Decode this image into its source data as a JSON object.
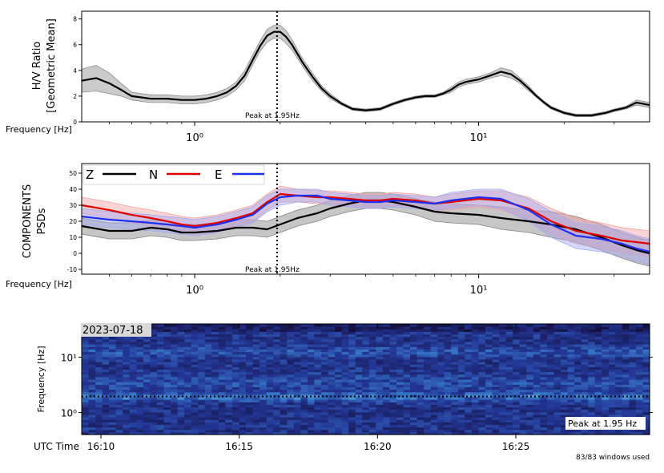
{
  "chart_data": [
    {
      "type": "line",
      "panel": "hv",
      "ylabel_line1": "H/V Ratio",
      "ylabel_line2": "[Geometric Mean]",
      "xlabel": "Frequency [Hz]",
      "x_scale": "log",
      "xlim": [
        0.4,
        40
      ],
      "ylim": [
        0,
        8.6
      ],
      "yticks": [
        0,
        2,
        4,
        6,
        8
      ],
      "xticks": [
        {
          "value": 1,
          "label": "10⁰"
        },
        {
          "value": 10,
          "label": "10¹"
        }
      ],
      "peak_freq": 1.95,
      "peak_label": "Peak at 1.95Hz",
      "series": [
        {
          "color": "#000000",
          "band_color": "#8c8c8c",
          "x": [
            0.4,
            0.45,
            0.5,
            0.55,
            0.6,
            0.7,
            0.8,
            0.9,
            1.0,
            1.1,
            1.2,
            1.3,
            1.4,
            1.5,
            1.6,
            1.7,
            1.8,
            1.9,
            1.95,
            2.0,
            2.1,
            2.2,
            2.4,
            2.6,
            2.8,
            3.0,
            3.3,
            3.6,
            4.0,
            4.5,
            5.0,
            5.5,
            6.0,
            6.5,
            7.0,
            7.5,
            8.0,
            8.5,
            9.0,
            10,
            11,
            12,
            13,
            14,
            15,
            16,
            17,
            18,
            20,
            22,
            25,
            28,
            30,
            33,
            36,
            40
          ],
          "y": [
            3.2,
            3.4,
            3.0,
            2.5,
            2.0,
            1.8,
            1.8,
            1.7,
            1.7,
            1.8,
            2.0,
            2.3,
            2.8,
            3.6,
            4.8,
            5.9,
            6.7,
            7.0,
            7.0,
            7.0,
            6.6,
            6.0,
            4.6,
            3.5,
            2.6,
            2.0,
            1.4,
            1.0,
            0.9,
            1.0,
            1.4,
            1.7,
            1.9,
            2.0,
            2.0,
            2.2,
            2.5,
            2.9,
            3.1,
            3.3,
            3.6,
            3.9,
            3.7,
            3.2,
            2.6,
            2.0,
            1.5,
            1.1,
            0.7,
            0.5,
            0.5,
            0.7,
            0.9,
            1.1,
            1.5,
            1.3
          ],
          "spread": [
            0.9,
            1.0,
            0.8,
            0.5,
            0.3,
            0.3,
            0.3,
            0.3,
            0.3,
            0.3,
            0.3,
            0.3,
            0.3,
            0.4,
            0.4,
            0.4,
            0.5,
            0.5,
            0.5,
            0.5,
            0.5,
            0.4,
            0.3,
            0.3,
            0.2,
            0.2,
            0.1,
            0.1,
            0.1,
            0.1,
            0.1,
            0.1,
            0.1,
            0.1,
            0.1,
            0.1,
            0.2,
            0.2,
            0.2,
            0.2,
            0.2,
            0.3,
            0.3,
            0.2,
            0.2,
            0.1,
            0.1,
            0.1,
            0.1,
            0.1,
            0.1,
            0.1,
            0.1,
            0.1,
            0.2,
            0.2
          ]
        }
      ]
    },
    {
      "type": "line",
      "panel": "components",
      "ylabel_line1": "COMPONENTS",
      "ylabel_line2": "PSDs",
      "xlabel": "Frequency [Hz]",
      "x_scale": "log",
      "xlim": [
        0.4,
        40
      ],
      "ylim": [
        -13,
        56
      ],
      "yticks": [
        -10,
        0,
        10,
        20,
        30,
        40,
        50
      ],
      "xticks": [
        {
          "value": 1,
          "label": "10⁰"
        },
        {
          "value": 10,
          "label": "10¹"
        }
      ],
      "peak_freq": 1.95,
      "peak_label": "Peak at 1.95Hz",
      "legend": "top-left",
      "series": [
        {
          "name": "Z",
          "color": "#000000",
          "band_color": "#808080",
          "x": [
            0.4,
            0.5,
            0.6,
            0.7,
            0.8,
            0.9,
            1.0,
            1.2,
            1.4,
            1.6,
            1.8,
            2.0,
            2.3,
            2.7,
            3.0,
            3.5,
            4.0,
            4.5,
            5.0,
            6.0,
            7.0,
            8.0,
            10,
            12,
            15,
            18,
            22,
            27,
            32,
            36,
            40
          ],
          "y": [
            17,
            14,
            14,
            16,
            15,
            13,
            13,
            14,
            16,
            16,
            15,
            18,
            22,
            25,
            28,
            31,
            33,
            33,
            32,
            29,
            26,
            25,
            24,
            22,
            20,
            18,
            15,
            10,
            5,
            2,
            0
          ],
          "spread": [
            5,
            5,
            5,
            5,
            5,
            5,
            5,
            5,
            5,
            5,
            5,
            5,
            5,
            5,
            5,
            5,
            5,
            5,
            5,
            5,
            6,
            6,
            6,
            7,
            7,
            8,
            8,
            8,
            8,
            8,
            8
          ]
        },
        {
          "name": "N",
          "color": "#e00000",
          "band_color": "#f2a0a0",
          "x": [
            0.4,
            0.5,
            0.6,
            0.7,
            0.8,
            0.9,
            1.0,
            1.2,
            1.4,
            1.6,
            1.8,
            2.0,
            2.3,
            2.7,
            3.0,
            3.5,
            4.0,
            4.5,
            5.0,
            6.0,
            7.0,
            8.0,
            10,
            12,
            15,
            18,
            22,
            27,
            32,
            36,
            40
          ],
          "y": [
            30,
            27,
            24,
            22,
            20,
            18,
            17,
            19,
            22,
            25,
            32,
            37,
            36,
            35,
            35,
            34,
            33,
            33,
            34,
            33,
            31,
            32,
            34,
            33,
            28,
            20,
            14,
            11,
            8,
            7,
            6
          ],
          "spread": [
            5,
            5,
            5,
            5,
            5,
            5,
            5,
            5,
            5,
            5,
            5,
            5,
            4,
            4,
            4,
            4,
            4,
            4,
            4,
            4,
            4,
            5,
            5,
            6,
            7,
            8,
            8,
            8,
            8,
            8,
            8
          ]
        },
        {
          "name": "E",
          "color": "#1f2ff0",
          "band_color": "#a0a8f2",
          "x": [
            0.4,
            0.5,
            0.6,
            0.7,
            0.8,
            0.9,
            1.0,
            1.2,
            1.4,
            1.6,
            1.8,
            2.0,
            2.3,
            2.7,
            3.0,
            3.5,
            4.0,
            4.5,
            5.0,
            6.0,
            7.0,
            8.0,
            10,
            12,
            15,
            18,
            22,
            27,
            32,
            36,
            40
          ],
          "y": [
            23,
            21,
            20,
            19,
            18,
            17,
            16,
            18,
            21,
            24,
            31,
            35,
            36,
            36,
            34,
            33,
            32,
            32,
            33,
            32,
            31,
            33,
            35,
            34,
            27,
            18,
            11,
            9,
            6,
            3,
            1
          ],
          "spread": [
            5,
            5,
            5,
            5,
            5,
            5,
            5,
            5,
            5,
            5,
            5,
            5,
            4,
            4,
            4,
            4,
            4,
            4,
            4,
            4,
            4,
            5,
            5,
            6,
            7,
            8,
            8,
            8,
            8,
            8,
            8
          ]
        }
      ]
    },
    {
      "type": "heatmap",
      "panel": "spectrogram",
      "date_label": "2023-07-18",
      "ylabel": "Frequency [Hz]",
      "xlabel": "UTC Time",
      "y_scale": "log",
      "ylim": [
        0.4,
        40
      ],
      "yticks": [
        {
          "value": 1,
          "label": "10⁰"
        },
        {
          "value": 10,
          "label": "10¹"
        }
      ],
      "xticks": [
        "16:10",
        "16:15",
        "16:20",
        "16:25"
      ],
      "peak_label": "Peak at 1.95 Hz",
      "peak_freq": 1.95,
      "footnote": "83/83 windows used"
    }
  ]
}
